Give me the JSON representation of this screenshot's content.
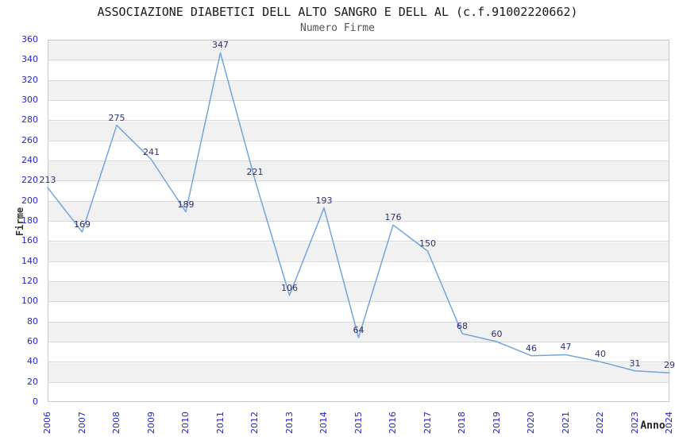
{
  "header": {
    "title": "ASSOCIAZIONE DIABETICI DELL ALTO SANGRO E DELL AL (c.f.91002220662)",
    "subtitle": "Numero Firme"
  },
  "chart_data": {
    "type": "line",
    "title": "ASSOCIAZIONE DIABETICI DELL ALTO SANGRO E DELL AL (c.f.91002220662)",
    "subtitle": "Numero Firme",
    "xlabel": "Anno",
    "ylabel": "Firme",
    "categories": [
      "2006",
      "2007",
      "2008",
      "2009",
      "2010",
      "2011",
      "2012",
      "2013",
      "2014",
      "2015",
      "2016",
      "2017",
      "2018",
      "2019",
      "2020",
      "2021",
      "2022",
      "2023",
      "2024"
    ],
    "series": [
      {
        "name": "Numero Firme",
        "values": [
          213,
          169,
          275,
          241,
          189,
          347,
          221,
          106,
          193,
          64,
          176,
          150,
          68,
          60,
          46,
          47,
          40,
          31,
          29
        ]
      }
    ],
    "data_labels_visible": true,
    "ylim": [
      0,
      360
    ],
    "yticks": [
      0,
      20,
      40,
      60,
      80,
      100,
      120,
      140,
      160,
      180,
      200,
      220,
      240,
      260,
      280,
      300,
      320,
      340,
      360
    ],
    "grid": "horizontal-bands",
    "legend": "none",
    "colors": {
      "line": "#72a5da",
      "tick_labels": "#2424cc",
      "data_labels": "#30306e",
      "band_alt": "#f1f1f1",
      "gridline": "#d9d9d9",
      "title": "#1a1a1a",
      "subtitle": "#555555",
      "axis_titles": "#333333"
    }
  }
}
